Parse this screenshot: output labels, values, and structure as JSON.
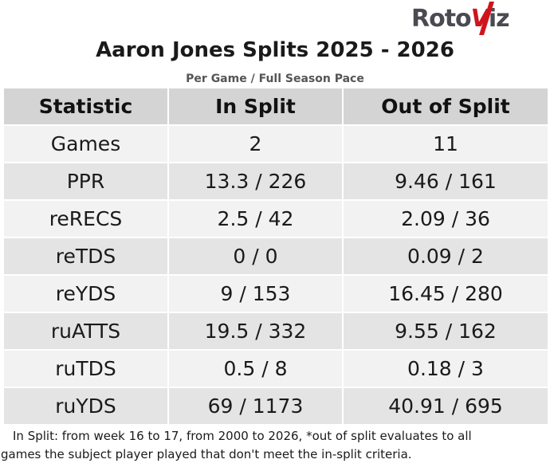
{
  "brand": {
    "logo_text_before": "Roto",
    "logo_text_after": "iz",
    "logo_slash": "V",
    "logo_colors": {
      "text": "#4a4a52",
      "accent": "#d0141e"
    }
  },
  "title": "Aaron Jones Splits 2025 - 2026",
  "subtitle": "Per Game / Full Season Pace",
  "table": {
    "headers": [
      "Statistic",
      "In Split",
      "Out of Split"
    ],
    "rows": [
      {
        "stat": "Games",
        "in_split": "2",
        "out_split": "11"
      },
      {
        "stat": "PPR",
        "in_split": "13.3 / 226",
        "out_split": "9.46 / 161"
      },
      {
        "stat": "reRECS",
        "in_split": "2.5 / 42",
        "out_split": "2.09 / 36"
      },
      {
        "stat": "reTDS",
        "in_split": "0 / 0",
        "out_split": "0.09 / 2"
      },
      {
        "stat": "reYDS",
        "in_split": "9 / 153",
        "out_split": "16.45 / 280"
      },
      {
        "stat": "ruATTS",
        "in_split": "19.5 / 332",
        "out_split": "9.55 / 162"
      },
      {
        "stat": "ruTDS",
        "in_split": "0.5 / 8",
        "out_split": "0.18 / 3"
      },
      {
        "stat": "ruYDS",
        "in_split": "69 / 1173",
        "out_split": "40.91 / 695"
      }
    ]
  },
  "footnote": {
    "line1": "In Split: from week 16 to 17, from 2000 to 2026,  *out of split evaluates to all",
    "line2": "games the subject player played that don't meet the in-split criteria."
  }
}
